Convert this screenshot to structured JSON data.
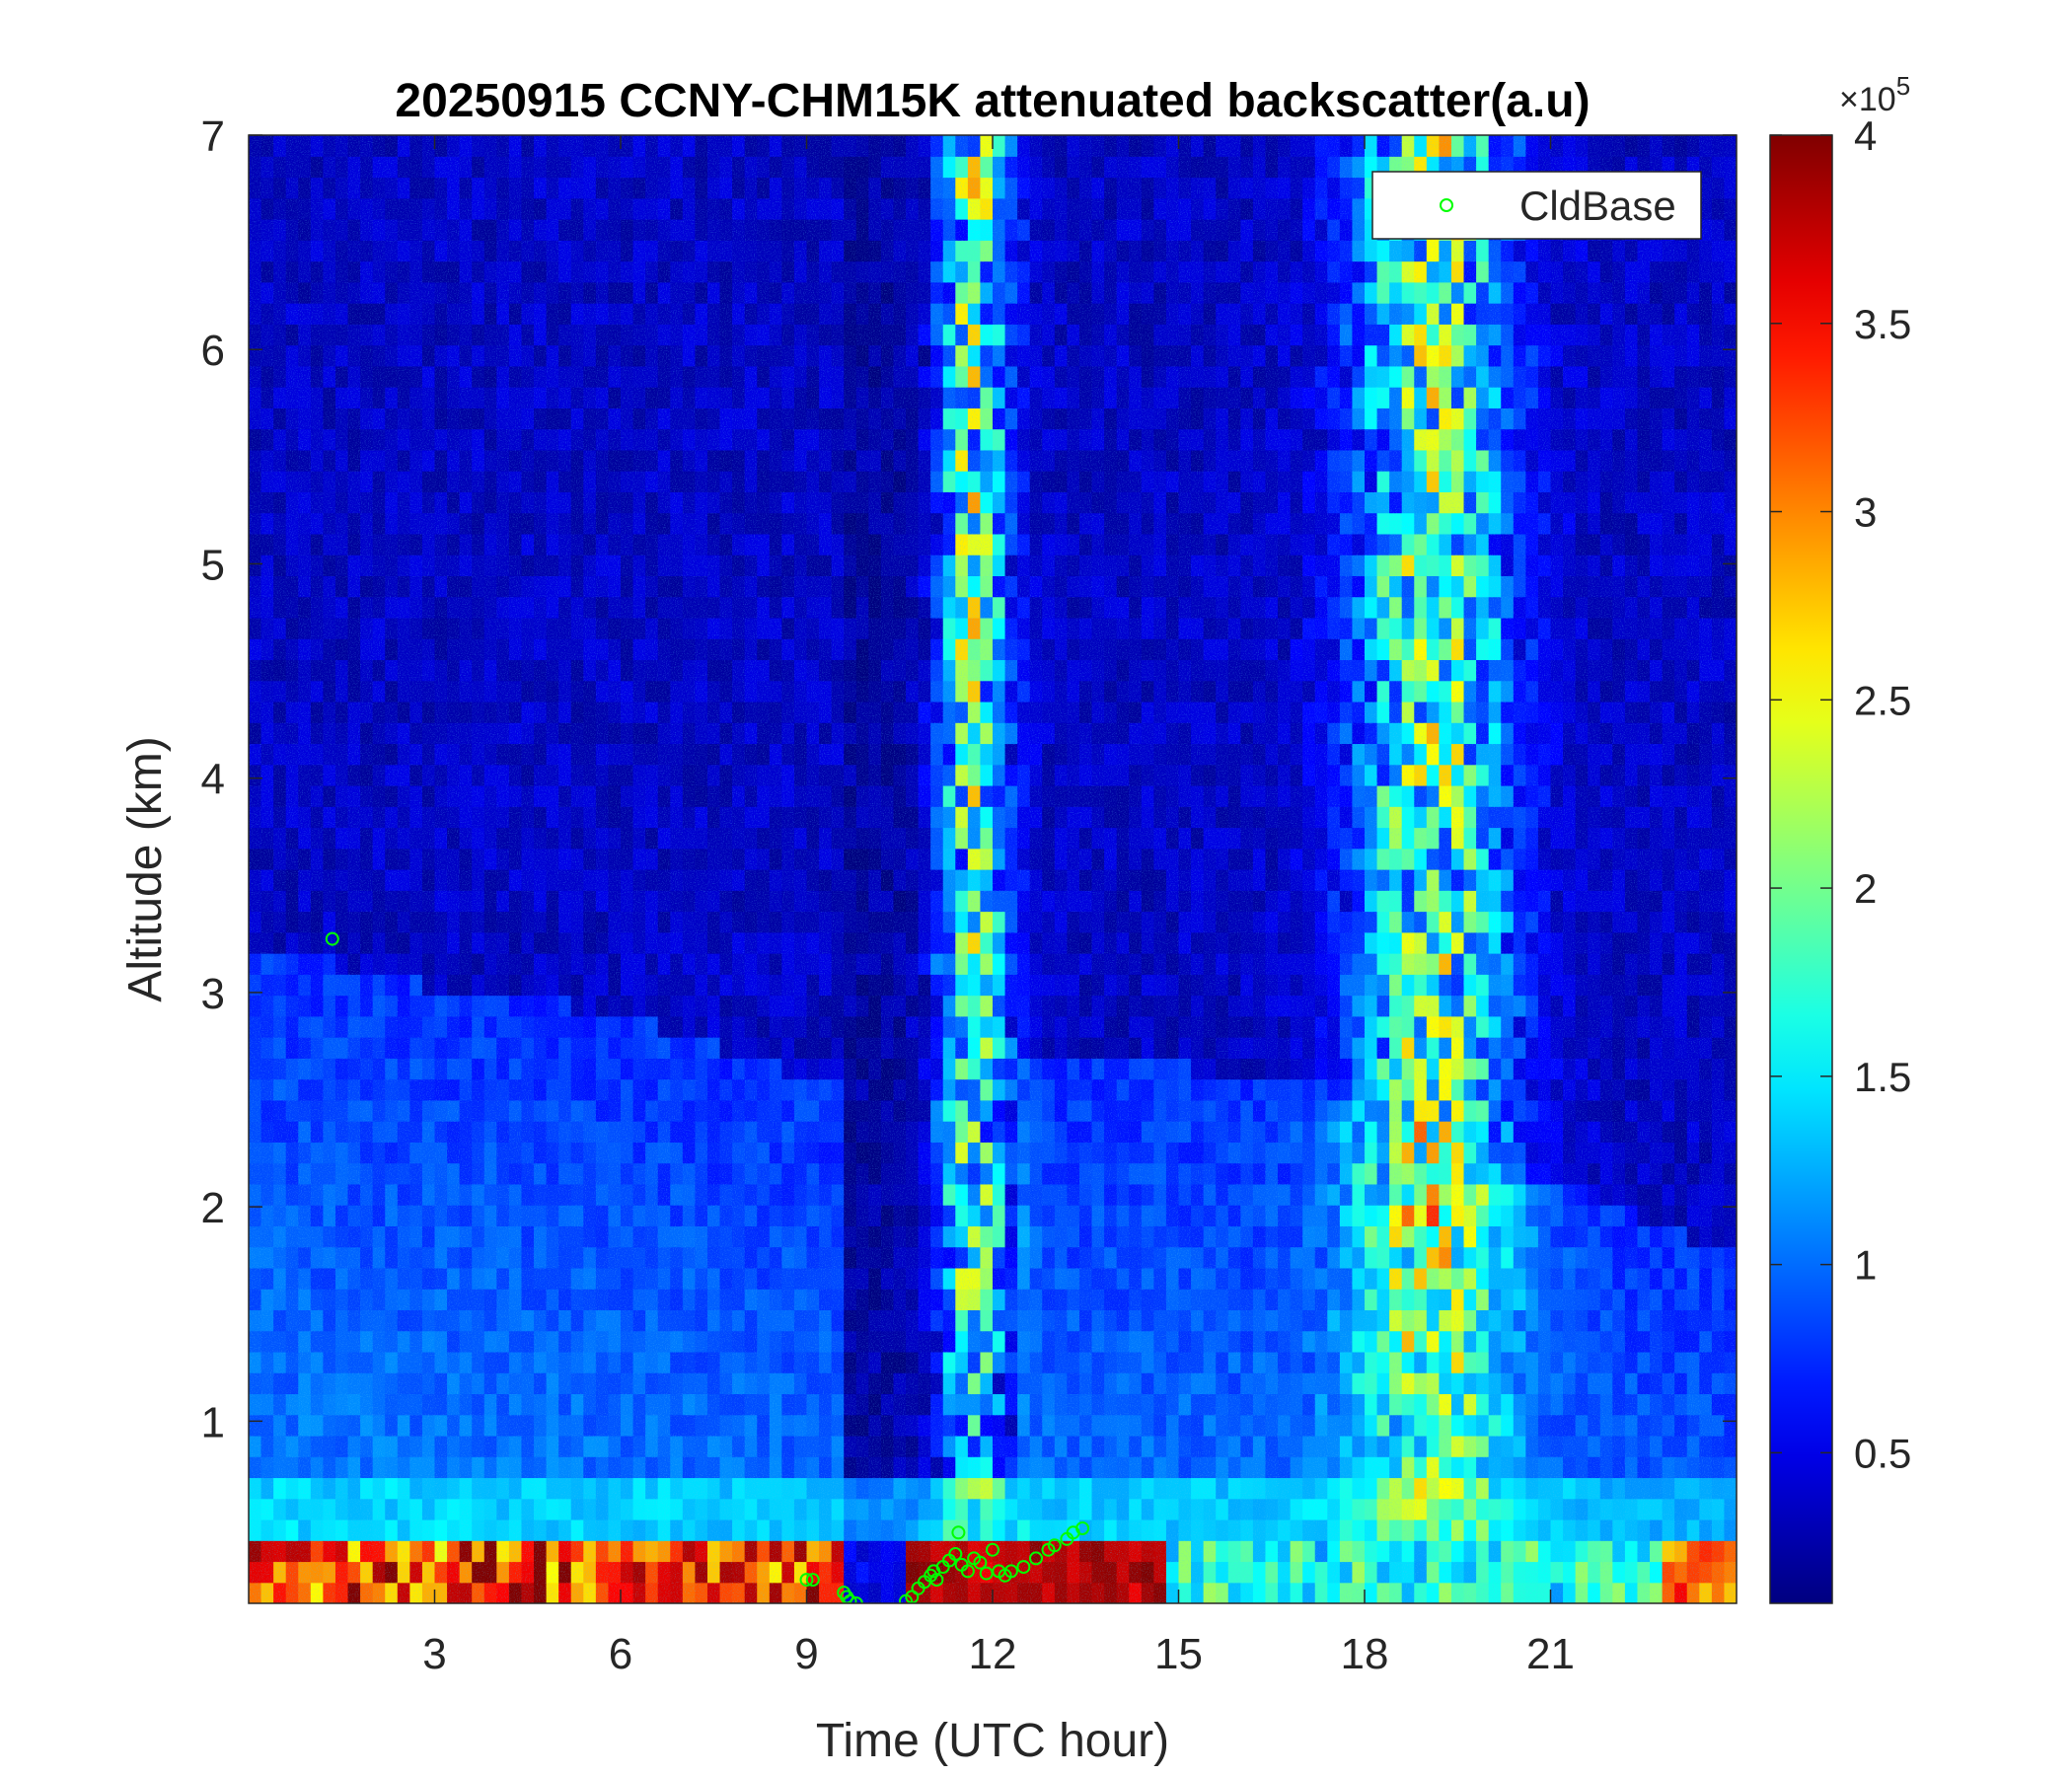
{
  "chart_data": {
    "type": "heatmap",
    "title": "20250915 CCNY-CHM15K attenuated backscatter(a.u)",
    "xlabel": "Time (UTC hour)",
    "ylabel": "Altitude (km)",
    "xlim": [
      0,
      24
    ],
    "ylim": [
      0.15,
      7
    ],
    "xticks": [
      3,
      6,
      9,
      12,
      15,
      18,
      21
    ],
    "yticks": [
      1,
      2,
      3,
      4,
      5,
      6,
      7
    ],
    "colormap": "jet",
    "colorbar": {
      "range": [
        0.1,
        4
      ],
      "ticks": [
        0.5,
        1,
        1.5,
        2,
        2.5,
        3,
        3.5,
        4
      ],
      "exponent_label": "×10",
      "exponent": "5"
    },
    "legend": {
      "location": "top-right",
      "entries": [
        {
          "name": "CldBase",
          "marker": "circle-open",
          "color": "#00ff00"
        }
      ]
    },
    "series": [
      {
        "name": "CldBase",
        "type": "scatter",
        "points": [
          [
            1.35,
            3.25
          ],
          [
            9.0,
            0.26
          ],
          [
            9.1,
            0.26
          ],
          [
            9.6,
            0.2
          ],
          [
            9.65,
            0.18
          ],
          [
            9.7,
            0.16
          ],
          [
            9.8,
            0.15
          ],
          [
            10.6,
            0.16
          ],
          [
            10.7,
            0.18
          ],
          [
            10.8,
            0.22
          ],
          [
            10.9,
            0.25
          ],
          [
            11.0,
            0.28
          ],
          [
            11.05,
            0.3
          ],
          [
            11.1,
            0.26
          ],
          [
            11.2,
            0.32
          ],
          [
            11.3,
            0.35
          ],
          [
            11.4,
            0.38
          ],
          [
            11.45,
            0.48
          ],
          [
            11.5,
            0.33
          ],
          [
            11.6,
            0.3
          ],
          [
            11.7,
            0.36
          ],
          [
            11.8,
            0.34
          ],
          [
            11.9,
            0.29
          ],
          [
            12.0,
            0.4
          ],
          [
            12.1,
            0.3
          ],
          [
            12.2,
            0.28
          ],
          [
            12.3,
            0.3
          ],
          [
            12.5,
            0.32
          ],
          [
            12.7,
            0.36
          ],
          [
            12.9,
            0.4
          ],
          [
            13.0,
            0.42
          ],
          [
            13.2,
            0.45
          ],
          [
            13.3,
            0.48
          ],
          [
            13.45,
            0.5
          ]
        ]
      }
    ]
  }
}
